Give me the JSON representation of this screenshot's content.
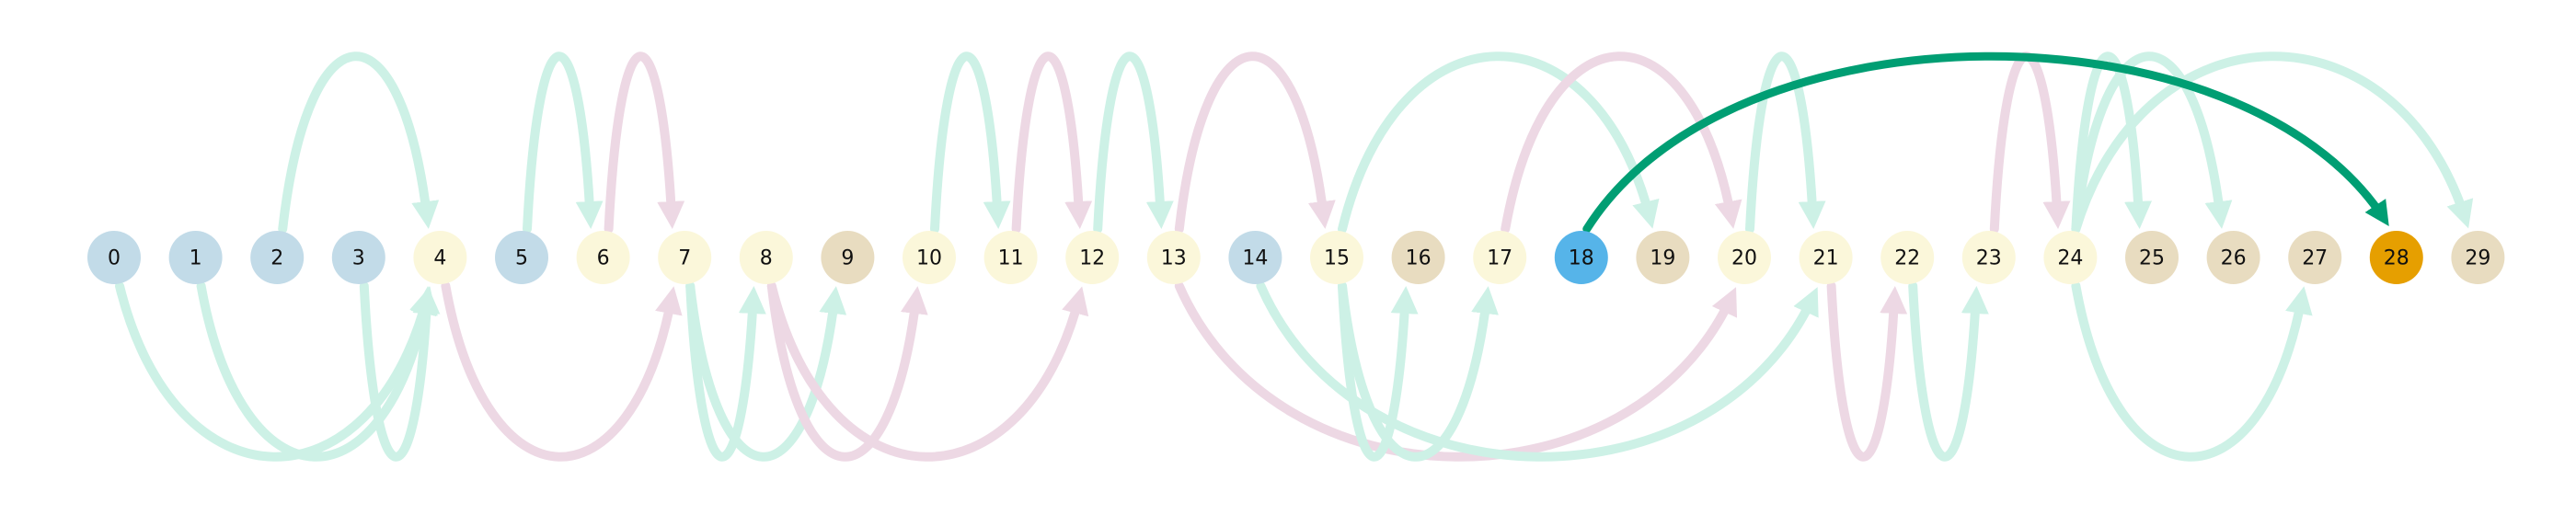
{
  "colors": {
    "node_blue": "#c2dbe8",
    "node_yellow": "#fbf7da",
    "node_tan": "#e8dcc0",
    "node_highlight_source": "#56b4e9",
    "node_highlight_target": "#e69f00",
    "arc_green": "#cdf1e6",
    "arc_pink": "#edd8e4",
    "arc_highlight": "#009e73"
  },
  "nodes": [
    {
      "label": "0",
      "color": "node_blue"
    },
    {
      "label": "1",
      "color": "node_blue"
    },
    {
      "label": "2",
      "color": "node_blue"
    },
    {
      "label": "3",
      "color": "node_blue"
    },
    {
      "label": "4",
      "color": "node_yellow"
    },
    {
      "label": "5",
      "color": "node_blue"
    },
    {
      "label": "6",
      "color": "node_yellow"
    },
    {
      "label": "7",
      "color": "node_yellow"
    },
    {
      "label": "8",
      "color": "node_yellow"
    },
    {
      "label": "9",
      "color": "node_tan"
    },
    {
      "label": "10",
      "color": "node_yellow"
    },
    {
      "label": "11",
      "color": "node_yellow"
    },
    {
      "label": "12",
      "color": "node_yellow"
    },
    {
      "label": "13",
      "color": "node_yellow"
    },
    {
      "label": "14",
      "color": "node_blue"
    },
    {
      "label": "15",
      "color": "node_yellow"
    },
    {
      "label": "16",
      "color": "node_tan"
    },
    {
      "label": "17",
      "color": "node_yellow"
    },
    {
      "label": "18",
      "color": "node_highlight_source"
    },
    {
      "label": "19",
      "color": "node_tan"
    },
    {
      "label": "20",
      "color": "node_yellow"
    },
    {
      "label": "21",
      "color": "node_yellow"
    },
    {
      "label": "22",
      "color": "node_yellow"
    },
    {
      "label": "23",
      "color": "node_yellow"
    },
    {
      "label": "24",
      "color": "node_yellow"
    },
    {
      "label": "25",
      "color": "node_tan"
    },
    {
      "label": "26",
      "color": "node_tan"
    },
    {
      "label": "27",
      "color": "node_tan"
    },
    {
      "label": "28",
      "color": "node_highlight_target"
    },
    {
      "label": "29",
      "color": "node_tan"
    }
  ],
  "edges": [
    {
      "from": 2,
      "to": 4,
      "side": "above",
      "color": "arc_green"
    },
    {
      "from": 5,
      "to": 6,
      "side": "above",
      "color": "arc_green"
    },
    {
      "from": 6,
      "to": 7,
      "side": "above",
      "color": "arc_pink"
    },
    {
      "from": 10,
      "to": 11,
      "side": "above",
      "color": "arc_green"
    },
    {
      "from": 11,
      "to": 12,
      "side": "above",
      "color": "arc_pink"
    },
    {
      "from": 12,
      "to": 13,
      "side": "above",
      "color": "arc_green"
    },
    {
      "from": 13,
      "to": 15,
      "side": "above",
      "color": "arc_pink"
    },
    {
      "from": 15,
      "to": 19,
      "side": "above",
      "color": "arc_green"
    },
    {
      "from": 17,
      "to": 20,
      "side": "above",
      "color": "arc_pink"
    },
    {
      "from": 20,
      "to": 21,
      "side": "above",
      "color": "arc_green"
    },
    {
      "from": 23,
      "to": 24,
      "side": "above",
      "color": "arc_pink"
    },
    {
      "from": 24,
      "to": 25,
      "side": "above",
      "color": "arc_green"
    },
    {
      "from": 24,
      "to": 26,
      "side": "above",
      "color": "arc_green"
    },
    {
      "from": 24,
      "to": 29,
      "side": "above",
      "color": "arc_green"
    },
    {
      "from": 0,
      "to": 4,
      "side": "below",
      "color": "arc_green"
    },
    {
      "from": 1,
      "to": 4,
      "side": "below",
      "color": "arc_green"
    },
    {
      "from": 3,
      "to": 4,
      "side": "below",
      "color": "arc_green"
    },
    {
      "from": 4,
      "to": 7,
      "side": "below",
      "color": "arc_pink"
    },
    {
      "from": 7,
      "to": 8,
      "side": "below",
      "color": "arc_green"
    },
    {
      "from": 7,
      "to": 9,
      "side": "below",
      "color": "arc_green"
    },
    {
      "from": 8,
      "to": 10,
      "side": "below",
      "color": "arc_pink"
    },
    {
      "from": 8,
      "to": 12,
      "side": "below",
      "color": "arc_pink"
    },
    {
      "from": 13,
      "to": 20,
      "side": "below",
      "color": "arc_pink"
    },
    {
      "from": 14,
      "to": 21,
      "side": "below",
      "color": "arc_green"
    },
    {
      "from": 15,
      "to": 16,
      "side": "below",
      "color": "arc_green"
    },
    {
      "from": 15,
      "to": 17,
      "side": "below",
      "color": "arc_green"
    },
    {
      "from": 21,
      "to": 22,
      "side": "below",
      "color": "arc_pink"
    },
    {
      "from": 22,
      "to": 23,
      "side": "below",
      "color": "arc_green"
    },
    {
      "from": 24,
      "to": 27,
      "side": "below",
      "color": "arc_green"
    },
    {
      "from": 18,
      "to": 28,
      "side": "above",
      "color": "arc_highlight",
      "highlight": true
    }
  ]
}
